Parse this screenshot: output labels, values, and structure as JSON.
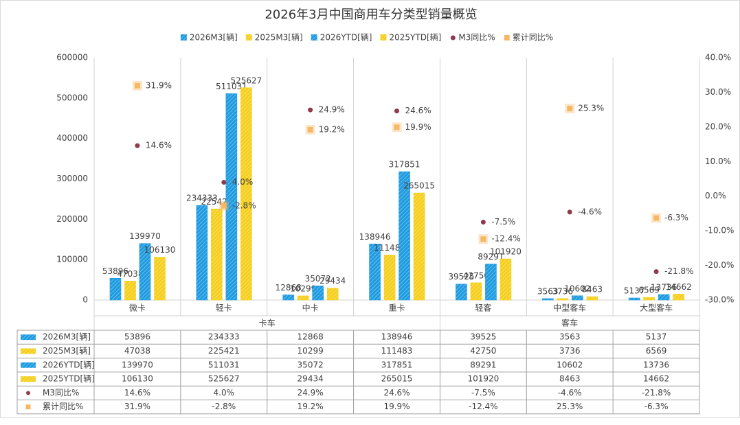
{
  "chart_data": {
    "type": "bar",
    "title": "2026年3月中国商用车分类型销量概览",
    "categories": [
      "微卡",
      "轻卡",
      "中卡",
      "重卡",
      "轻客",
      "中型客车",
      "大型客车"
    ],
    "groups": [
      {
        "label": "卡车",
        "categories": [
          "微卡",
          "轻卡",
          "中卡",
          "重卡"
        ]
      },
      {
        "label": "客车",
        "categories": [
          "轻客",
          "中型客车",
          "大型客车"
        ]
      }
    ],
    "series": [
      {
        "name": "2026M3[辆]",
        "type": "bar",
        "color": "#1e9be0",
        "pattern": "hatch",
        "values": [
          53896,
          234333,
          12868,
          138946,
          39525,
          3563,
          5137
        ]
      },
      {
        "name": "2025M3[辆]",
        "type": "bar",
        "color": "#f5cf1c",
        "pattern": "hatch",
        "values": [
          47038,
          225421,
          10299,
          111483,
          42750,
          3736,
          6569
        ]
      },
      {
        "name": "2026YTD[辆]",
        "type": "bar",
        "color": "#1e9be0",
        "pattern": "hatch",
        "values": [
          139970,
          511031,
          35072,
          317851,
          89291,
          10602,
          13736
        ]
      },
      {
        "name": "2025YTD[辆]",
        "type": "bar",
        "color": "#f5cf1c",
        "pattern": "hatch",
        "values": [
          106130,
          525627,
          29434,
          265015,
          101920,
          8463,
          14662
        ]
      },
      {
        "name": "M3同比%",
        "type": "scatter",
        "marker": "circle",
        "color": "#8e3b4c",
        "axis": "y2",
        "values": [
          14.6,
          4.0,
          24.9,
          24.6,
          -7.5,
          -4.6,
          -21.8
        ],
        "value_labels": [
          "14.6%",
          "4.0%",
          "24.9%",
          "24.6%",
          "-7.5%",
          "-4.6%",
          "-21.8%"
        ]
      },
      {
        "name": "累计同比%",
        "type": "scatter",
        "marker": "square",
        "color": "#f7b865",
        "axis": "y2",
        "values": [
          31.9,
          -2.8,
          19.2,
          19.9,
          -12.4,
          25.3,
          -6.3
        ],
        "value_labels": [
          "31.9%",
          "-2.8%",
          "19.2%",
          "19.9%",
          "-12.4%",
          "25.3%",
          "-6.3%"
        ]
      }
    ],
    "ylim": [
      0,
      600000
    ],
    "yticks": [
      0,
      100000,
      200000,
      300000,
      400000,
      500000,
      600000
    ],
    "y2lim": [
      -30,
      40
    ],
    "y2ticks": [
      {
        "value": -30,
        "label": "-30.0%"
      },
      {
        "value": -20,
        "label": "-20.0%"
      },
      {
        "value": -10,
        "label": "-10.0%"
      },
      {
        "value": 0,
        "label": "0.0%"
      },
      {
        "value": 10,
        "label": "10.0%"
      },
      {
        "value": 20,
        "label": "20.0%"
      },
      {
        "value": 30,
        "label": "30.0%"
      },
      {
        "value": 40,
        "label": "40.0%"
      }
    ],
    "grid": false,
    "legend": "top",
    "data_table": true
  }
}
